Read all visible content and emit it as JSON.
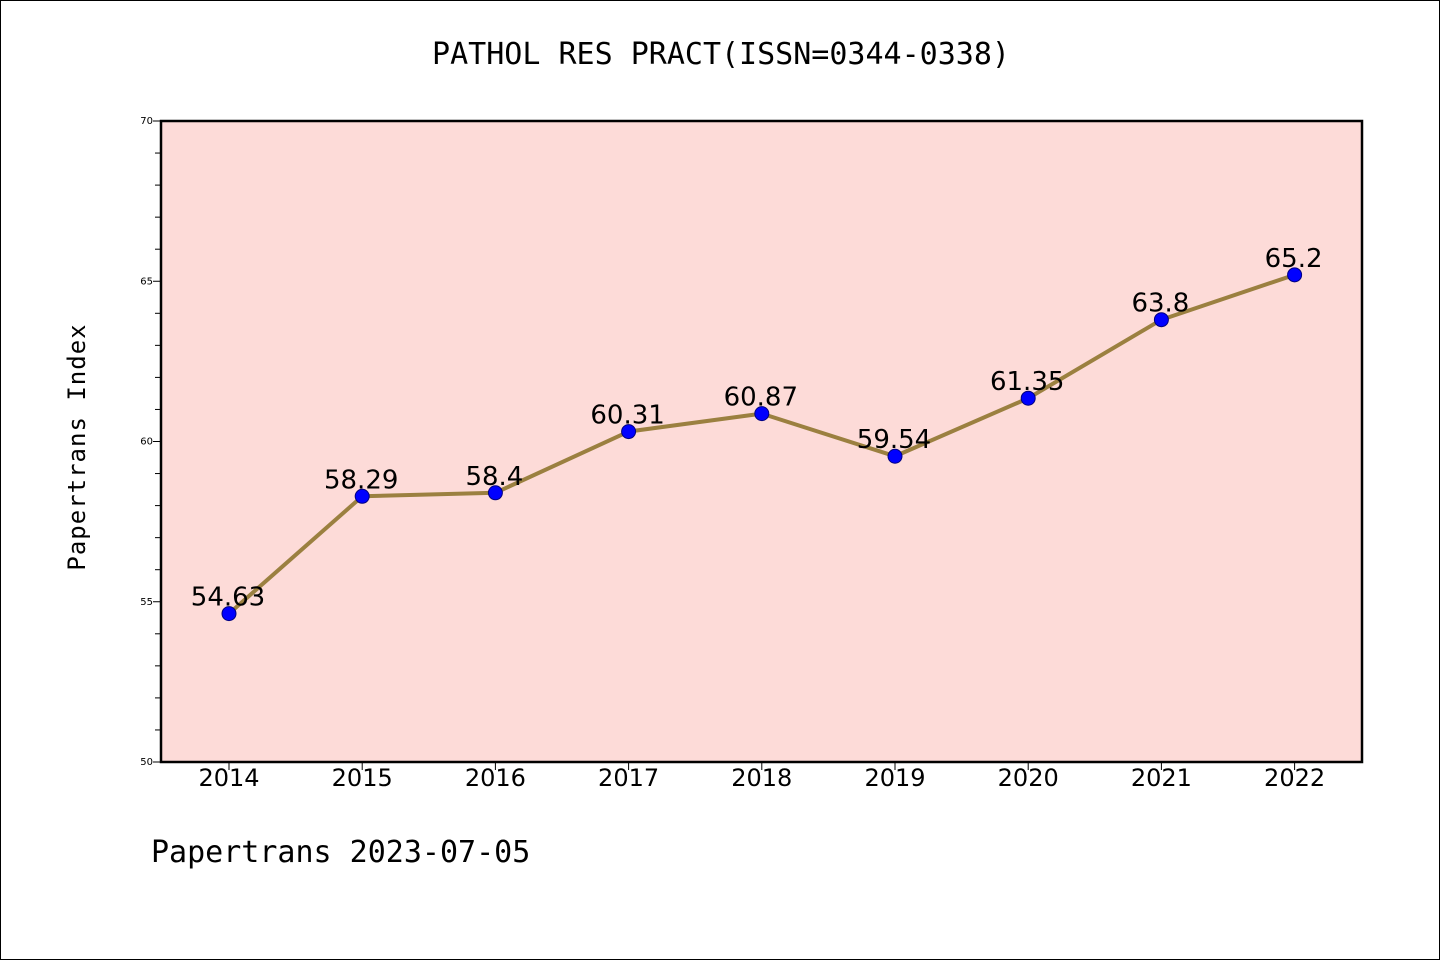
{
  "title": "PATHOL RES PRACT(ISSN=0344-0338)",
  "footer": "Papertrans 2023-07-05",
  "colors": {
    "plot_background": "#fddbd8",
    "line": "#9b8040",
    "marker_fill": "#0000ff",
    "marker_stroke": "#000080",
    "axis": "#000000"
  },
  "chart_data": {
    "type": "line",
    "title": "PATHOL RES PRACT(ISSN=0344-0338)",
    "xlabel": "",
    "ylabel": "Papertrans Index",
    "categories": [
      "2014",
      "2015",
      "2016",
      "2017",
      "2018",
      "2019",
      "2020",
      "2021",
      "2022"
    ],
    "values": [
      54.63,
      58.29,
      58.4,
      60.31,
      60.87,
      59.54,
      61.35,
      63.8,
      65.2
    ],
    "data_labels": [
      "54.63",
      "58.29",
      "58.4",
      "60.31",
      "60.87",
      "59.54",
      "61.35",
      "63.8",
      "65.2"
    ],
    "ylim": [
      50,
      70
    ],
    "yticks": [
      "50",
      "55",
      "60",
      "65",
      "70"
    ],
    "y_minor_step": 1,
    "grid": false,
    "legend": "none"
  }
}
